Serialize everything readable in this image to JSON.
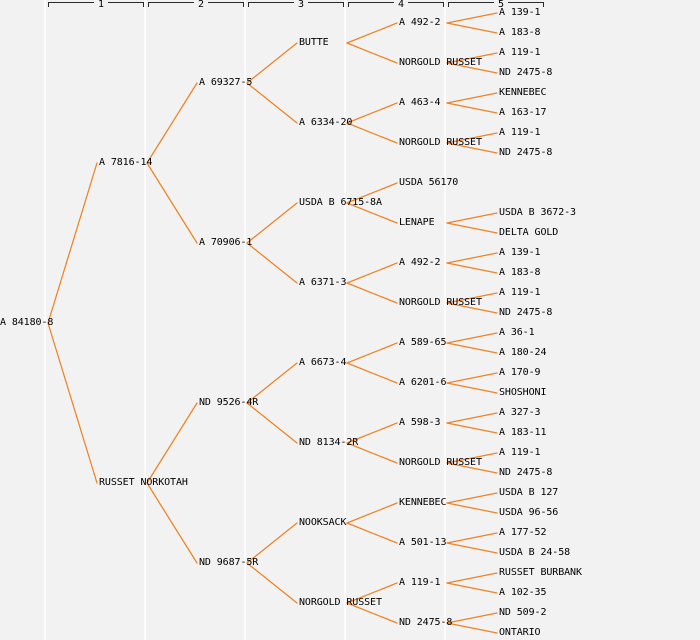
{
  "meta": {
    "background_color": "#f2f2f2",
    "line_color": "#ee8322",
    "text_color": "#000000",
    "ruler_color": "#2a2a2a",
    "guide_color": "#ffffff"
  },
  "ruler": {
    "labels": [
      "1",
      "2",
      "3",
      "4",
      "5"
    ]
  },
  "chart_data": {
    "type": "tree",
    "variant": "pedigree",
    "orientation": "left-to-right",
    "generations_shown": 5,
    "root": {
      "name": "A 84180-8",
      "children": [
        {
          "name": "A 7816-14",
          "children": [
            {
              "name": "A 69327-5",
              "children": [
                {
                  "name": "BUTTE",
                  "children": [
                    {
                      "name": "A 492-2",
                      "children": [
                        {
                          "name": "A 139-1"
                        },
                        {
                          "name": "A 183-8"
                        }
                      ]
                    },
                    {
                      "name": "NORGOLD RUSSET",
                      "children": [
                        {
                          "name": "A 119-1"
                        },
                        {
                          "name": "ND 2475-8"
                        }
                      ]
                    }
                  ]
                },
                {
                  "name": "A 6334-20",
                  "children": [
                    {
                      "name": "A 463-4",
                      "children": [
                        {
                          "name": "KENNEBEC"
                        },
                        {
                          "name": "A 163-17"
                        }
                      ]
                    },
                    {
                      "name": "NORGOLD RUSSET",
                      "children": [
                        {
                          "name": "A 119-1"
                        },
                        {
                          "name": "ND 2475-8"
                        }
                      ]
                    }
                  ]
                }
              ]
            },
            {
              "name": "A 70906-1",
              "children": [
                {
                  "name": "USDA B 6715-8A",
                  "children": [
                    {
                      "name": "USDA 56170"
                    },
                    {
                      "name": "LENAPE",
                      "children": [
                        {
                          "name": "USDA B 3672-3"
                        },
                        {
                          "name": "DELTA GOLD"
                        }
                      ]
                    }
                  ]
                },
                {
                  "name": "A 6371-3",
                  "children": [
                    {
                      "name": "A 492-2",
                      "children": [
                        {
                          "name": "A 139-1"
                        },
                        {
                          "name": "A 183-8"
                        }
                      ]
                    },
                    {
                      "name": "NORGOLD RUSSET",
                      "children": [
                        {
                          "name": "A 119-1"
                        },
                        {
                          "name": "ND 2475-8"
                        }
                      ]
                    }
                  ]
                }
              ]
            }
          ]
        },
        {
          "name": "RUSSET NORKOTAH",
          "children": [
            {
              "name": "ND 9526-4R",
              "children": [
                {
                  "name": "A 6673-4",
                  "children": [
                    {
                      "name": "A 589-65",
                      "children": [
                        {
                          "name": "A 36-1"
                        },
                        {
                          "name": "A 180-24"
                        }
                      ]
                    },
                    {
                      "name": "A 6201-6",
                      "children": [
                        {
                          "name": "A 170-9"
                        },
                        {
                          "name": "SHOSHONI"
                        }
                      ]
                    }
                  ]
                },
                {
                  "name": "ND 8134-2R",
                  "children": [
                    {
                      "name": "A 598-3",
                      "children": [
                        {
                          "name": "A 327-3"
                        },
                        {
                          "name": "A 183-11"
                        }
                      ]
                    },
                    {
                      "name": "NORGOLD RUSSET",
                      "children": [
                        {
                          "name": "A 119-1"
                        },
                        {
                          "name": "ND 2475-8"
                        }
                      ]
                    }
                  ]
                }
              ]
            },
            {
              "name": "ND 9687-5R",
              "children": [
                {
                  "name": "NOOKSACK",
                  "children": [
                    {
                      "name": "KENNEBEC",
                      "children": [
                        {
                          "name": "USDA B 127"
                        },
                        {
                          "name": "USDA 96-56"
                        }
                      ]
                    },
                    {
                      "name": "A 501-13",
                      "children": [
                        {
                          "name": "A 177-52"
                        },
                        {
                          "name": "USDA B 24-58"
                        }
                      ]
                    }
                  ]
                },
                {
                  "name": "NORGOLD RUSSET",
                  "children": [
                    {
                      "name": "A 119-1",
                      "children": [
                        {
                          "name": "RUSSET BURBANK"
                        },
                        {
                          "name": "A 102-35"
                        }
                      ]
                    },
                    {
                      "name": "ND 2475-8",
                      "children": [
                        {
                          "name": "ND 509-2"
                        },
                        {
                          "name": "ONTARIO"
                        }
                      ]
                    }
                  ]
                }
              ]
            }
          ]
        }
      ]
    }
  }
}
